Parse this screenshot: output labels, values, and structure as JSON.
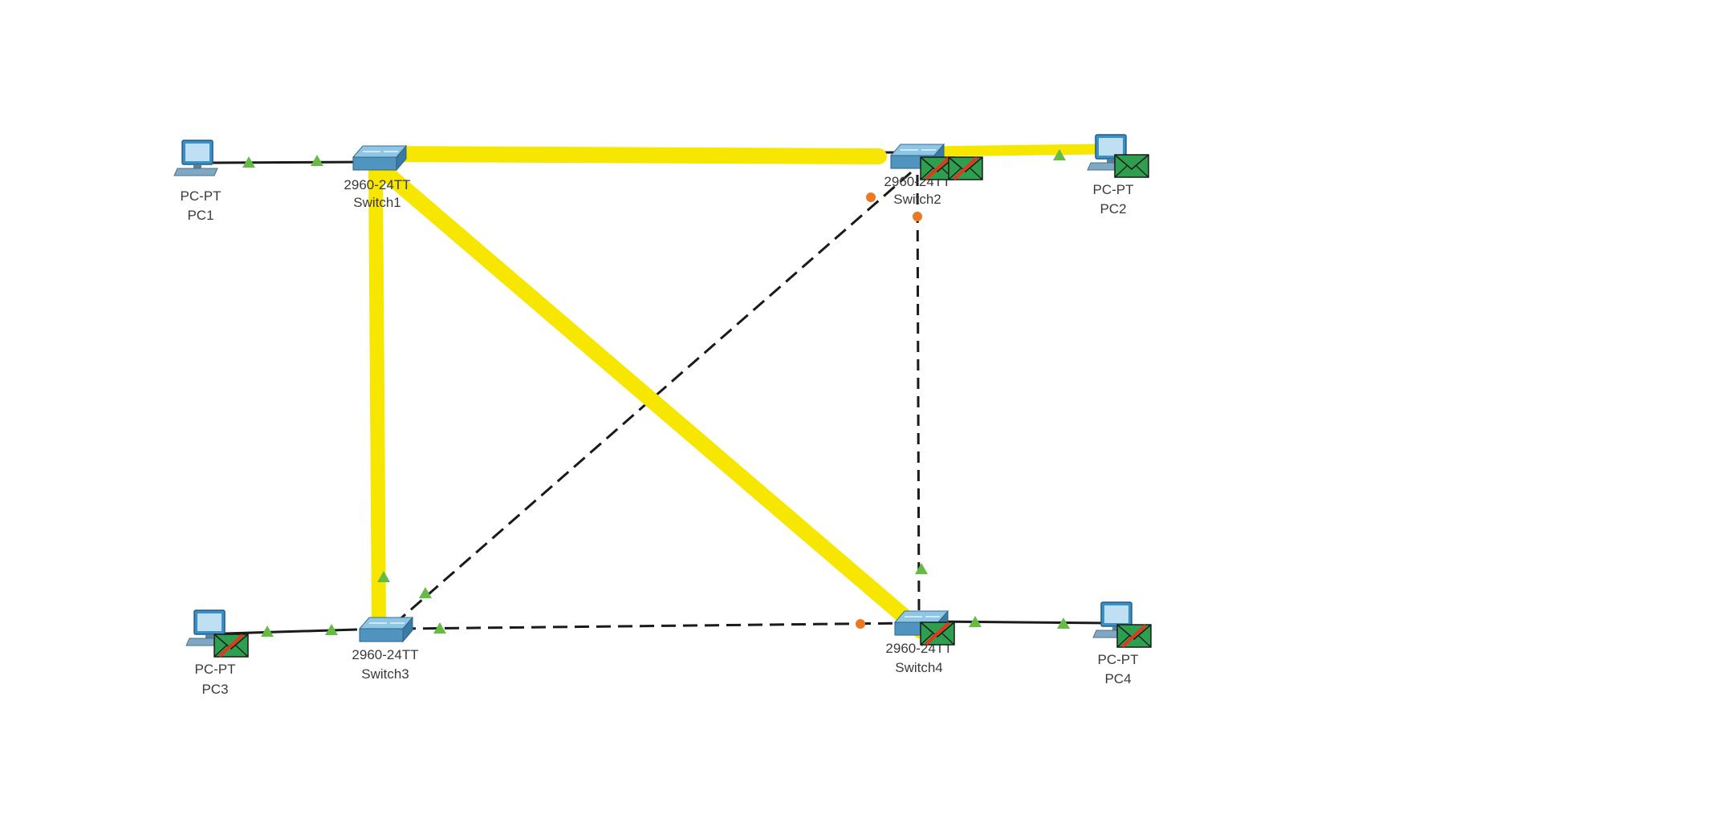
{
  "colors": {
    "highlight": "#f7e600",
    "link": "#1a1a1a",
    "port_up": "#66bb44",
    "port_blocked": "#ee7722",
    "envelope": "#2e9e4f",
    "envelope_strike": "#e03a1c",
    "switch_body": "#5a9ec4",
    "pc_body": "#3a8fc4"
  },
  "devices": {
    "pc1": {
      "model": "PC-PT",
      "name": "PC1",
      "icon": "pc-icon"
    },
    "pc2": {
      "model": "PC-PT",
      "name": "PC2",
      "icon": "pc-icon"
    },
    "pc3": {
      "model": "PC-PT",
      "name": "PC3",
      "icon": "pc-icon"
    },
    "pc4": {
      "model": "PC-PT",
      "name": "PC4",
      "icon": "pc-icon"
    },
    "switch1": {
      "model": "2960-24TT",
      "name": "Switch1",
      "icon": "switch-icon"
    },
    "switch2": {
      "model": "2960-24TT",
      "name": "Switch2",
      "icon": "switch-icon"
    },
    "switch3": {
      "model": "2960-24TT",
      "name": "Switch3",
      "icon": "switch-icon"
    },
    "switch4": {
      "model": "2960-24TT",
      "name": "Switch4",
      "icon": "switch-icon"
    }
  },
  "links": [
    {
      "from": "PC1",
      "to": "Switch1",
      "style": "solid"
    },
    {
      "from": "Switch1",
      "to": "Switch2",
      "style": "dashed",
      "highlighted": true
    },
    {
      "from": "Switch2",
      "to": "PC2",
      "style": "solid",
      "highlighted": true
    },
    {
      "from": "Switch1",
      "to": "Switch3",
      "style": "dashed",
      "highlighted": true
    },
    {
      "from": "Switch1",
      "to": "Switch4",
      "style": "dashed",
      "highlighted": true
    },
    {
      "from": "Switch2",
      "to": "Switch3",
      "style": "dashed",
      "blocked_end": "Switch2"
    },
    {
      "from": "Switch2",
      "to": "Switch4",
      "style": "dashed",
      "blocked_end": "Switch2"
    },
    {
      "from": "Switch3",
      "to": "Switch4",
      "style": "dashed",
      "blocked_end": "Switch4"
    },
    {
      "from": "PC3",
      "to": "Switch3",
      "style": "solid"
    },
    {
      "from": "Switch4",
      "to": "PC4",
      "style": "solid"
    }
  ],
  "envelopes": [
    {
      "at": "Switch2",
      "struck": true
    },
    {
      "at": "Switch2",
      "struck": true
    },
    {
      "at": "PC2",
      "struck": false
    },
    {
      "at": "PC3",
      "struck": true
    },
    {
      "at": "Switch4",
      "struck": true
    },
    {
      "at": "PC4",
      "struck": true
    }
  ]
}
